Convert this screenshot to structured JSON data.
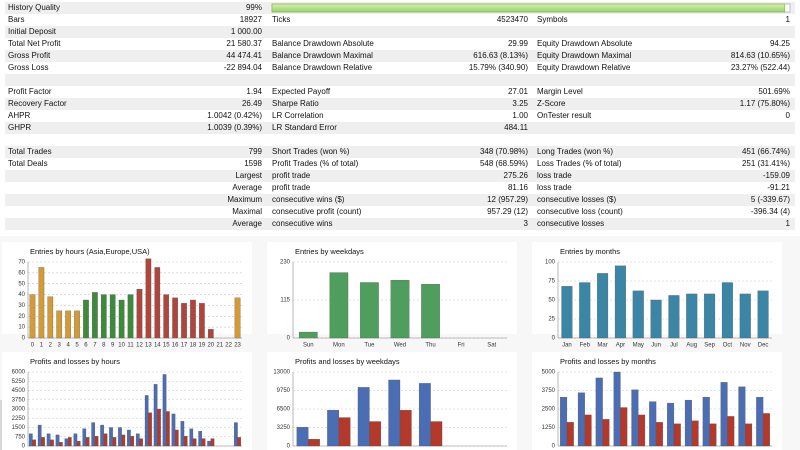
{
  "report": {
    "quality_bar": {
      "value": 99,
      "xlim": [
        0,
        100
      ]
    },
    "rows": [
      {
        "left": {
          "label": "History Quality",
          "value": "99%"
        }
      },
      {
        "left": {
          "label": "Bars",
          "value": "18927"
        },
        "mid": {
          "label": "Ticks",
          "value": "4523470"
        },
        "right": {
          "label": "Symbols",
          "value": "1"
        }
      },
      {
        "left": {
          "label": "Initial Deposit",
          "value": "1 000.00"
        }
      },
      {
        "left": {
          "label": "Total Net Profit",
          "value": "21 580.37"
        },
        "mid": {
          "label": "Balance Drawdown Absolute",
          "value": "29.99"
        },
        "right": {
          "label": "Equity Drawdown Absolute",
          "value": "94.25"
        }
      },
      {
        "left": {
          "label": "Gross Profit",
          "value": "44 474.41"
        },
        "mid": {
          "label": "Balance Drawdown Maximal",
          "value": "616.63 (8.13%)"
        },
        "right": {
          "label": "Equity Drawdown Maximal",
          "value": "814.63 (10.65%)"
        }
      },
      {
        "left": {
          "label": "Gross Loss",
          "value": "-22 894.04"
        },
        "mid": {
          "label": "Balance Drawdown Relative",
          "value": "15.79% (340.90)"
        },
        "right": {
          "label": "Equity Drawdown Relative",
          "value": "23.27% (522.44)"
        }
      },
      {},
      {
        "left": {
          "label": "Profit Factor",
          "value": "1.94"
        },
        "mid": {
          "label": "Expected Payoff",
          "value": "27.01"
        },
        "right": {
          "label": "Margin Level",
          "value": "501.69%"
        }
      },
      {
        "left": {
          "label": "Recovery Factor",
          "value": "26.49"
        },
        "mid": {
          "label": "Sharpe Ratio",
          "value": "3.25"
        },
        "right": {
          "label": "Z-Score",
          "value": "1.17 (75.80%)"
        }
      },
      {
        "left": {
          "label": "AHPR",
          "value": "1.0042 (0.42%)"
        },
        "mid": {
          "label": "LR Correlation",
          "value": "1.00"
        },
        "right": {
          "label": "OnTester result",
          "value": "0"
        }
      },
      {
        "left": {
          "label": "GHPR",
          "value": "1.0039 (0.39%)"
        },
        "mid": {
          "label": "LR Standard Error",
          "value": "484.11"
        }
      },
      {},
      {
        "left": {
          "label": "Total Trades",
          "value": "799"
        },
        "mid": {
          "label": "Short Trades (won %)",
          "value": "348 (70.98%)"
        },
        "right": {
          "label": "Long Trades (won %)",
          "value": "451 (66.74%)"
        }
      },
      {
        "left": {
          "label": "Total Deals",
          "value": "1598"
        },
        "mid": {
          "label": "Profit Trades (% of total)",
          "value": "548 (68.59%)"
        },
        "right": {
          "label": "Loss Trades (% of total)",
          "value": "251 (31.41%)"
        }
      },
      {
        "tag": "Largest",
        "mid": {
          "label": "profit trade",
          "value": "275.26"
        },
        "right": {
          "label": "loss trade",
          "value": "-159.09"
        }
      },
      {
        "tag": "Average",
        "mid": {
          "label": "profit trade",
          "value": "81.16"
        },
        "right": {
          "label": "loss trade",
          "value": "-91.21"
        }
      },
      {
        "tag": "Maximum",
        "mid": {
          "label": "consecutive wins ($)",
          "value": "12 (957.29)"
        },
        "right": {
          "label": "consecutive losses ($)",
          "value": "5 (-339.67)"
        }
      },
      {
        "tag": "Maximal",
        "mid": {
          "label": "consecutive profit (count)",
          "value": "957.29 (12)"
        },
        "right": {
          "label": "consecutive loss (count)",
          "value": "-396.34 (4)"
        }
      },
      {
        "tag": "Average",
        "mid": {
          "label": "consecutive wins",
          "value": "3"
        },
        "right": {
          "label": "consecutive losses",
          "value": "1"
        }
      }
    ]
  },
  "chart_data": [
    {
      "type": "bar",
      "title": "Entries by hours (Asia,Europe,USA)",
      "categories": [
        "0",
        "1",
        "2",
        "3",
        "4",
        "5",
        "6",
        "7",
        "8",
        "9",
        "10",
        "11",
        "12",
        "13",
        "14",
        "15",
        "16",
        "17",
        "18",
        "19",
        "20",
        "21",
        "22",
        "23"
      ],
      "series": [
        {
          "values": [
            40,
            65,
            38,
            25,
            25,
            25,
            35,
            42,
            40,
            40,
            35,
            40,
            45,
            73,
            65,
            40,
            37,
            32,
            35,
            32,
            8,
            0,
            0,
            37
          ],
          "colors": [
            "#d39a35",
            "#d39a35",
            "#d39a35",
            "#d39a35",
            "#d39a35",
            "#d39a35",
            "#3d8a3d",
            "#3d8a3d",
            "#3d8a3d",
            "#3d8a3d",
            "#3d8a3d",
            "#3d8a3d",
            "#b0453c",
            "#b0453c",
            "#b0453c",
            "#b0453c",
            "#b0453c",
            "#b0453c",
            "#b0453c",
            "#b0453c",
            "#b0453c",
            "#d39a35",
            "#d39a35",
            "#d39a35"
          ]
        }
      ],
      "ylim": [
        0,
        70
      ],
      "yticks": [
        0,
        10,
        20,
        30,
        40,
        50,
        60,
        70
      ]
    },
    {
      "type": "bar",
      "title": "Entries by weekdays",
      "categories": [
        "Sun",
        "Mon",
        "Tue",
        "Wed",
        "Thu",
        "Fri",
        "Sat"
      ],
      "series": [
        {
          "color": "#4f9e5e",
          "values": [
            18,
            198,
            168,
            175,
            163,
            0,
            0
          ]
        }
      ],
      "ylim": [
        0,
        230
      ],
      "yticks": [
        0,
        115,
        230
      ]
    },
    {
      "type": "bar",
      "title": "Entries by months",
      "categories": [
        "Jan",
        "Feb",
        "Mar",
        "Apr",
        "May",
        "Jun",
        "Jul",
        "Aug",
        "Sep",
        "Oct",
        "Nov",
        "Dec"
      ],
      "series": [
        {
          "color": "#3b86a6",
          "values": [
            68,
            73,
            85,
            95,
            62,
            50,
            56,
            58,
            58,
            73,
            58,
            62
          ]
        }
      ],
      "ylim": [
        0,
        100
      ],
      "yticks": [
        0,
        25,
        50,
        75,
        100
      ]
    },
    {
      "type": "bar",
      "title": "Profits and losses by hours",
      "series": [
        {
          "color": "#4a6db3",
          "values": [
            1000,
            1700,
            1000,
            900,
            600,
            1000,
            1400,
            1900,
            1700,
            1500,
            1500,
            1300,
            1000,
            4100,
            5000,
            5800,
            2600,
            2000,
            1400,
            1200,
            400,
            0,
            0,
            1900
          ]
        },
        {
          "color": "#b3392a",
          "values": [
            500,
            700,
            500,
            300,
            700,
            400,
            700,
            800,
            1000,
            700,
            900,
            800,
            600,
            2700,
            3000,
            2800,
            1300,
            800,
            600,
            600,
            600,
            0,
            0,
            700
          ]
        }
      ],
      "ylim": [
        0,
        6000
      ],
      "yticks": [
        0,
        750,
        1500,
        2250,
        3000,
        3750,
        4500,
        5250,
        6000
      ]
    },
    {
      "type": "bar",
      "title": "Profits and losses by weekdays",
      "series": [
        {
          "color": "#4a6db3",
          "values": [
            3300,
            6300,
            10300,
            11600,
            11000,
            0,
            0
          ]
        },
        {
          "color": "#b3392a",
          "values": [
            1200,
            5000,
            4300,
            6300,
            4300,
            0,
            0
          ]
        }
      ],
      "ylim": [
        0,
        13000
      ],
      "yticks": [
        0,
        3250,
        6500,
        9750,
        13000
      ]
    },
    {
      "type": "bar",
      "title": "Profits and losses by months",
      "series": [
        {
          "color": "#4a6db3",
          "values": [
            3300,
            3600,
            4600,
            5000,
            3800,
            3000,
            2900,
            3100,
            3300,
            4300,
            4000,
            3300
          ]
        },
        {
          "color": "#b3392a",
          "values": [
            1600,
            2100,
            1800,
            2600,
            2100,
            1600,
            1500,
            1700,
            1500,
            2000,
            1500,
            2200
          ]
        }
      ],
      "ylim": [
        0,
        5000
      ],
      "yticks": [
        0,
        1250,
        2500,
        3750,
        5000
      ]
    }
  ]
}
